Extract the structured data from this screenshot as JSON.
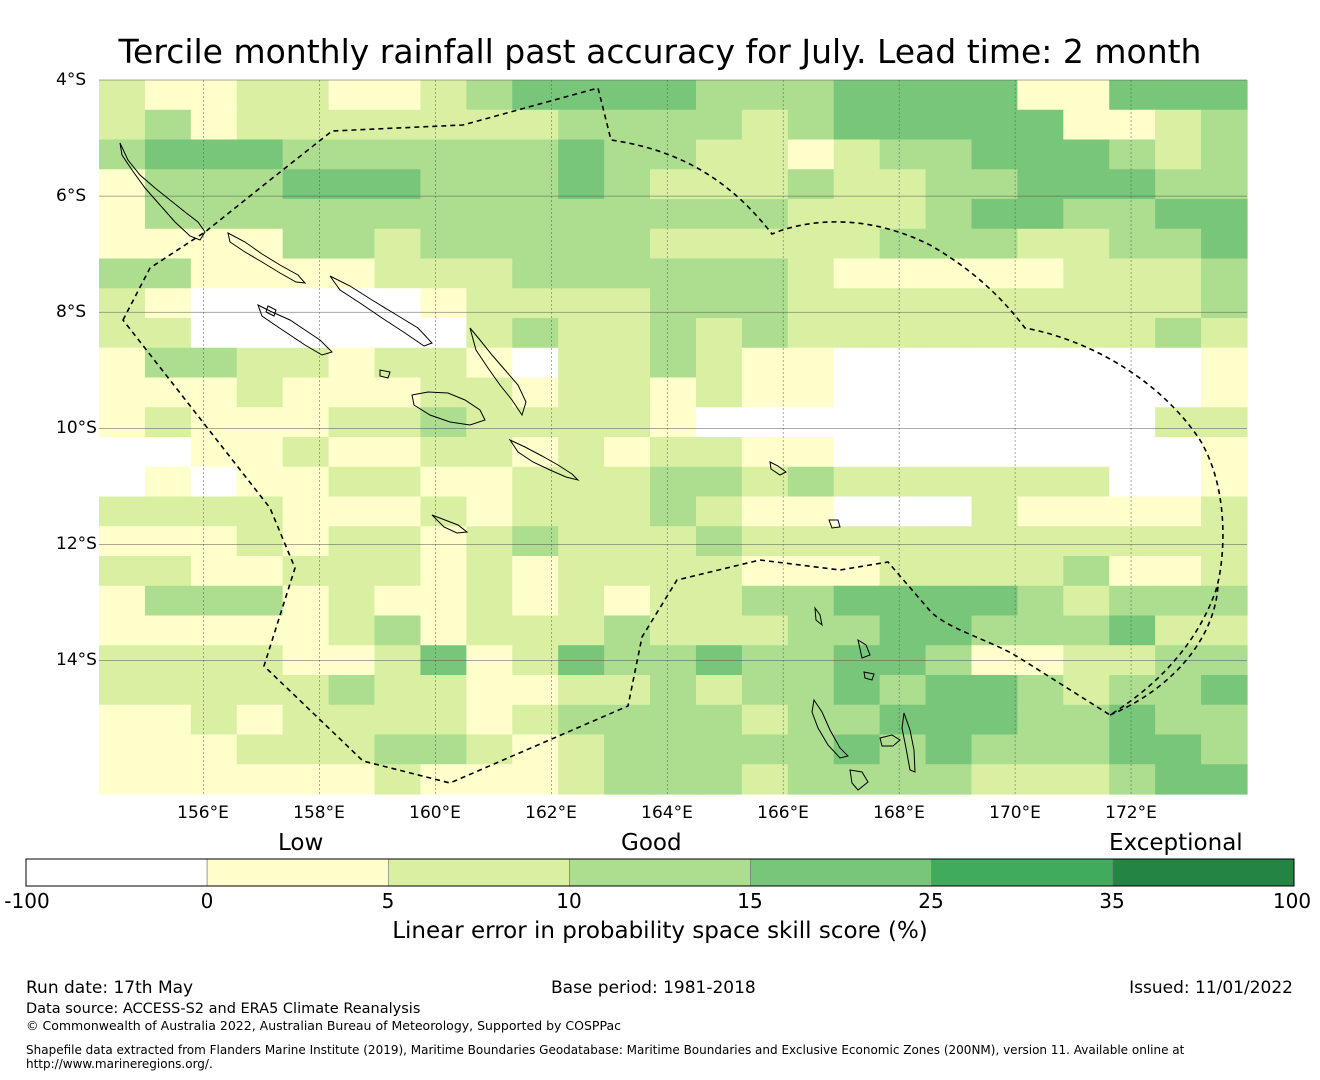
{
  "title": "Tercile monthly rainfall past accuracy for July. Lead time: 2 month",
  "map": {
    "lat_labels": [
      "4°S",
      "6°S",
      "8°S",
      "10°S",
      "12°S",
      "14°S"
    ],
    "lon_labels": [
      "156°E",
      "158°E",
      "160°E",
      "162°E",
      "164°E",
      "166°E",
      "168°E",
      "170°E",
      "172°E"
    ],
    "lat_values": [
      -4,
      -6,
      -8,
      -10,
      -12,
      -14
    ],
    "lon_values": [
      156,
      158,
      160,
      162,
      164,
      166,
      168,
      170,
      172
    ],
    "lon_range": [
      154.2,
      174.0
    ],
    "lat_range": [
      -4.0,
      -16.3
    ],
    "grid_cell_deg": 0.83,
    "grid": [
      "2112211234444333444411444",
      "2312222222333323444441123",
      "3444333333433221233444323",
      "1333444333432223223344433",
      "1333333333333332223443344",
      "1111332333332222233322334",
      "3311112223333332111112223",
      "2100000122223332222222223",
      "2200000023223232222222232",
      "1332212210223211000000001",
      "1112111221221211000000001",
      "1211122322221000000000022",
      "0011211221212211000000001",
      "0101122112223323222222001",
      "2222111212223211000211112",
      "1112122123222322222222222",
      "2211222121222211122223112",
      "1333121121212233444432333",
      "1111123122232223344333422",
      "2222112412433433443112233",
      "2222232211223233434432334",
      "1121222212333323344433433",
      "1112223321233333434333443",
      "1111112111233323333222344"
    ],
    "colors": [
      "#ffffff",
      "#ffffcc",
      "#d9f0a3",
      "#addd8e",
      "#78c679",
      "#41ab5d",
      "#238443"
    ]
  },
  "colorbar": {
    "categories": [
      "Low",
      "Good",
      "Exceptional"
    ],
    "ticks": [
      "-100",
      "0",
      "5",
      "10",
      "15",
      "25",
      "35",
      "100"
    ],
    "label": "Linear error in probability space skill score (%)"
  },
  "footer": {
    "run_date": "Run date: 17th May",
    "base_period": "Base period: 1981-2018",
    "issued": "Issued: 11/01/2022",
    "data_source": "Data source: ACCESS-S2 and ERA5 Climate Reanalysis",
    "copyright": "© Commonwealth of Australia 2022, Australian Bureau of Meteorology, Supported by COSPPac",
    "shapefile_line1": "Shapefile data extracted from Flanders Marine Institute (2019), Maritime Boundaries Geodatabase: Maritime Boundaries and Exclusive Economic Zones (200NM), version 11. Available online at",
    "shapefile_line2": "http://www.marineregions.org/."
  }
}
